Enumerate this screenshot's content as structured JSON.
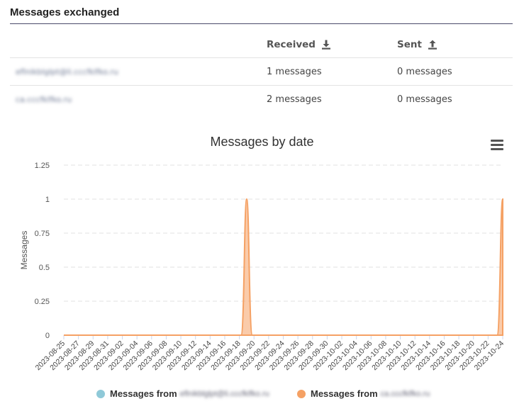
{
  "section": {
    "title": "Messages exchanged"
  },
  "table": {
    "headers": {
      "col1": "",
      "received": "Received",
      "sent": "Sent"
    },
    "rows": [
      {
        "contact": "eflnikblglpt@li.cccfklfko.ru",
        "received": "1 messages",
        "sent": "0 messages"
      },
      {
        "contact": "ca.cccfklfko.ru",
        "received": "2 messages",
        "sent": "0 messages"
      }
    ]
  },
  "chart_data": {
    "type": "area",
    "title": "Messages by date",
    "xlabel": "",
    "ylabel": "Messages",
    "ylim": [
      0,
      1.25
    ],
    "yticks": [
      "0",
      "0.25",
      "0.5",
      "0.75",
      "1",
      "1.25"
    ],
    "x": [
      "2023-08-25",
      "2023-08-27",
      "2023-08-29",
      "2023-08-31",
      "2023-09-02",
      "2023-09-04",
      "2023-09-06",
      "2023-09-08",
      "2023-09-10",
      "2023-09-12",
      "2023-09-14",
      "2023-09-16",
      "2023-09-18",
      "2023-09-20",
      "2023-09-22",
      "2023-09-24",
      "2023-09-26",
      "2023-09-28",
      "2023-09-30",
      "2023-10-02",
      "2023-10-04",
      "2023-10-06",
      "2023-10-08",
      "2023-10-10",
      "2023-10-12",
      "2023-10-14",
      "2023-10-16",
      "2023-10-18",
      "2023-10-20",
      "2023-10-22",
      "2023-10-24"
    ],
    "grid": true,
    "legend_placement": "bottom",
    "series": [
      {
        "name": "Messages from eflnikblglpt@li.cccfklfko.ru",
        "color": "#8fc9d8",
        "peaks": []
      },
      {
        "name": "Messages from ca.cccfklfko.ru",
        "color": "#f5a164",
        "peaks": [
          {
            "date": "2023-09-19",
            "value": 1
          },
          {
            "date": "2023-10-24",
            "value": 1
          }
        ]
      }
    ]
  },
  "legend": {
    "prefix": "Messages from",
    "series1_name": "eflnikblglpt@li.cccfklfko.ru",
    "series2_name": "ca.cccfklfko.ru"
  },
  "icons": {
    "received": "download-icon",
    "sent": "upload-icon",
    "menu": "hamburger-menu-icon"
  }
}
